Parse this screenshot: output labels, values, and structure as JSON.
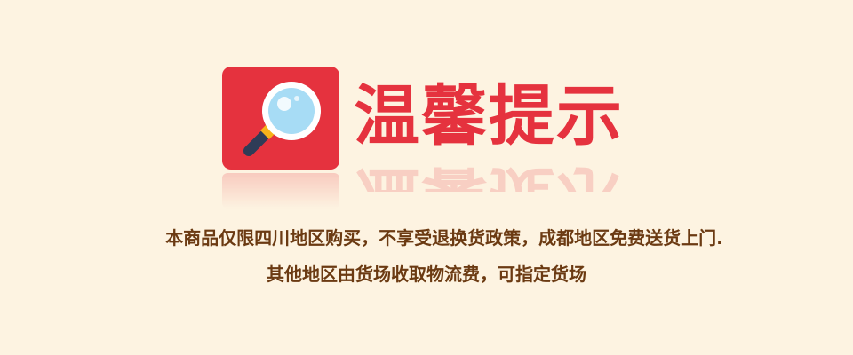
{
  "notice": {
    "title": "温馨提示",
    "icon": "magnifier-icon",
    "lines": [
      "本商品仅限四川地区购买，不享受退换货政策，成都地区免费送货上门.",
      "其他地区由货场收取物流费，可指定货场"
    ]
  },
  "colors": {
    "background": "#fdf3e1",
    "accent_red": "#e5323e",
    "text_brown": "#6b3a12",
    "lens_blue": "#a7dcf5",
    "handle_navy": "#2f3c57"
  }
}
